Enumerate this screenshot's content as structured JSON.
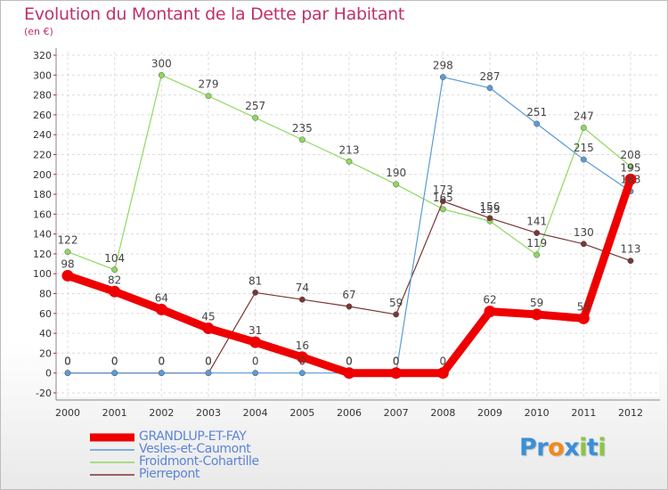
{
  "chart_data": {
    "type": "line",
    "title": "Evolution du Montant de la Dette par Habitant",
    "subtitle": "(en €)",
    "xlabel": "",
    "ylabel": "",
    "ylim": [
      -20,
      320
    ],
    "yticks": [
      -20,
      0,
      20,
      40,
      60,
      80,
      100,
      120,
      140,
      160,
      180,
      200,
      220,
      240,
      260,
      280,
      300,
      320
    ],
    "categories": [
      "2000",
      "2001",
      "2002",
      "2003",
      "2004",
      "2005",
      "2006",
      "2007",
      "2008",
      "2009",
      "2010",
      "2011",
      "2012"
    ],
    "grid": true,
    "legend_position": "bottom-left",
    "series": [
      {
        "name": "GRANDLUP-ET-FAY",
        "color": "#ee0000",
        "values": [
          98,
          82,
          64,
          45,
          31,
          16,
          0,
          0,
          0,
          62,
          59,
          55,
          195
        ]
      },
      {
        "name": "Vesles-et-Caumont",
        "color": "#5b9bd5",
        "values": [
          0,
          0,
          0,
          0,
          0,
          0,
          0,
          0,
          298,
          287,
          251,
          215,
          183
        ]
      },
      {
        "name": "Froidmont-Cohartille",
        "color": "#8fd860",
        "values": [
          122,
          104,
          300,
          279,
          257,
          235,
          213,
          190,
          165,
          153,
          119,
          247,
          208
        ]
      },
      {
        "name": "Pierrepont",
        "color": "#7a3535",
        "values": [
          0,
          0,
          0,
          0,
          81,
          74,
          67,
          59,
          173,
          156,
          141,
          130,
          113
        ]
      }
    ]
  },
  "legend": {
    "items": [
      "GRANDLUP-ET-FAY",
      "Vesles-et-Caumont",
      "Froidmont-Cohartille",
      "Pierrepont"
    ]
  },
  "brand": {
    "letters": [
      "P",
      "r",
      "o",
      "x",
      "i",
      "t",
      "i"
    ],
    "colors": [
      "#3a8fd8",
      "#3a8fd8",
      "#f28a1a",
      "#3a8fd8",
      "#8cc63e",
      "#3a8fd8",
      "#8cc63e"
    ]
  }
}
